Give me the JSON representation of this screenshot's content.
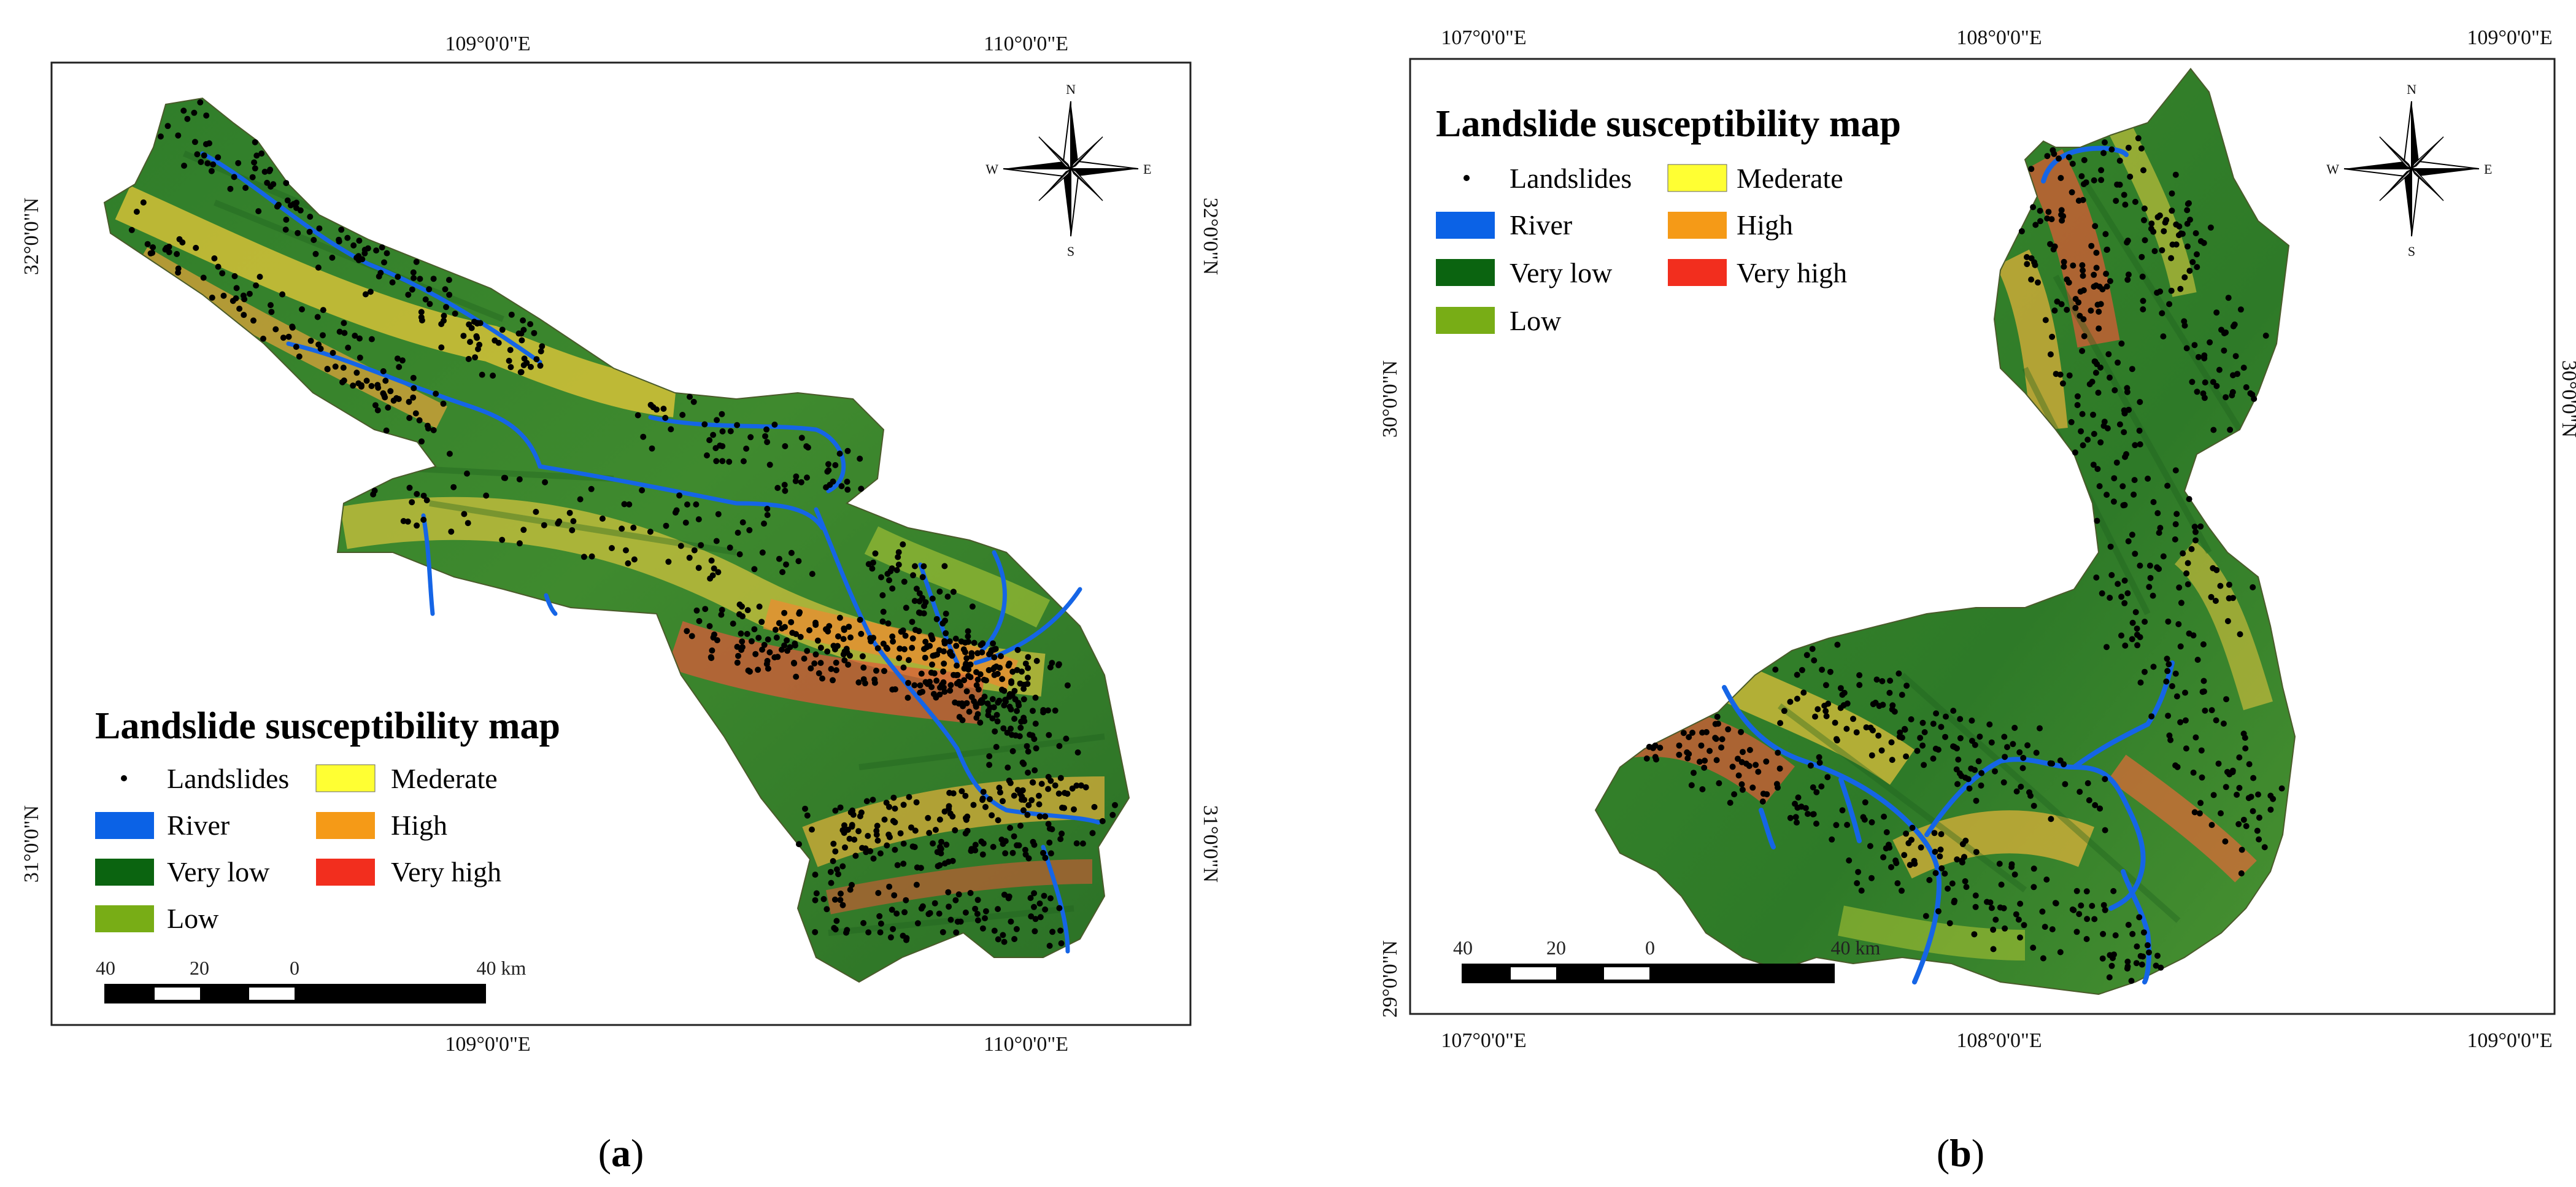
{
  "panels": [
    {
      "id": "a",
      "caption_open": "(",
      "caption_letter": "a",
      "caption_close": ")",
      "top_labels": [
        "109°0'0\"E",
        "110°0'0\"E"
      ],
      "bottom_labels": [
        "109°0'0\"E",
        "110°0'0\"E"
      ],
      "left_labels": [
        "32°0'0\"N",
        "31°0'0\"N"
      ],
      "right_labels": [
        "32°0'0\"N",
        "31°0'0\"N"
      ],
      "compass": {
        "n": "N",
        "s": "S",
        "e": "E",
        "w": "W"
      },
      "scale": {
        "labels": [
          "40",
          "20",
          "0",
          "40 km"
        ]
      },
      "legend": {
        "title": "Landslide susceptibility map",
        "items": [
          {
            "label": "Landslides",
            "color": "#000000",
            "kind": "dot"
          },
          {
            "label": "Mederate",
            "color": "#ffff33",
            "kind": "box"
          },
          {
            "label": "River",
            "color": "#0b62e6",
            "kind": "box"
          },
          {
            "label": "High",
            "color": "#f59a17",
            "kind": "box"
          },
          {
            "label": "Very low",
            "color": "#0b6410",
            "kind": "box"
          },
          {
            "label": "Very high",
            "color": "#f22e1e",
            "kind": "box"
          },
          {
            "label": "Low",
            "color": "#78ad16",
            "kind": "box"
          }
        ]
      }
    },
    {
      "id": "b",
      "caption_open": "(",
      "caption_letter": "b",
      "caption_close": ")",
      "top_labels": [
        "107°0'0\"E",
        "108°0'0\"E",
        "109°0'0\"E"
      ],
      "bottom_labels": [
        "107°0'0\"E",
        "108°0'0\"E",
        "109°0'0\"E"
      ],
      "left_labels": [
        "30°0'0\"N",
        "29°0'0\"N"
      ],
      "right_labels": [
        "30°0'0\"N"
      ],
      "compass": {
        "n": "N",
        "s": "S",
        "e": "E",
        "w": "W"
      },
      "scale": {
        "labels": [
          "40",
          "20",
          "0",
          "40 km"
        ]
      },
      "legend": {
        "title": "Landslide susceptibility map",
        "items": [
          {
            "label": "Landslides",
            "color": "#000000",
            "kind": "dot"
          },
          {
            "label": "Mederate",
            "color": "#ffff33",
            "kind": "box"
          },
          {
            "label": "River",
            "color": "#0b62e6",
            "kind": "box"
          },
          {
            "label": "High",
            "color": "#f59a17",
            "kind": "box"
          },
          {
            "label": "Very low",
            "color": "#0b6410",
            "kind": "box"
          },
          {
            "label": "Very high",
            "color": "#f22e1e",
            "kind": "box"
          },
          {
            "label": "Low",
            "color": "#78ad16",
            "kind": "box"
          }
        ]
      }
    }
  ]
}
